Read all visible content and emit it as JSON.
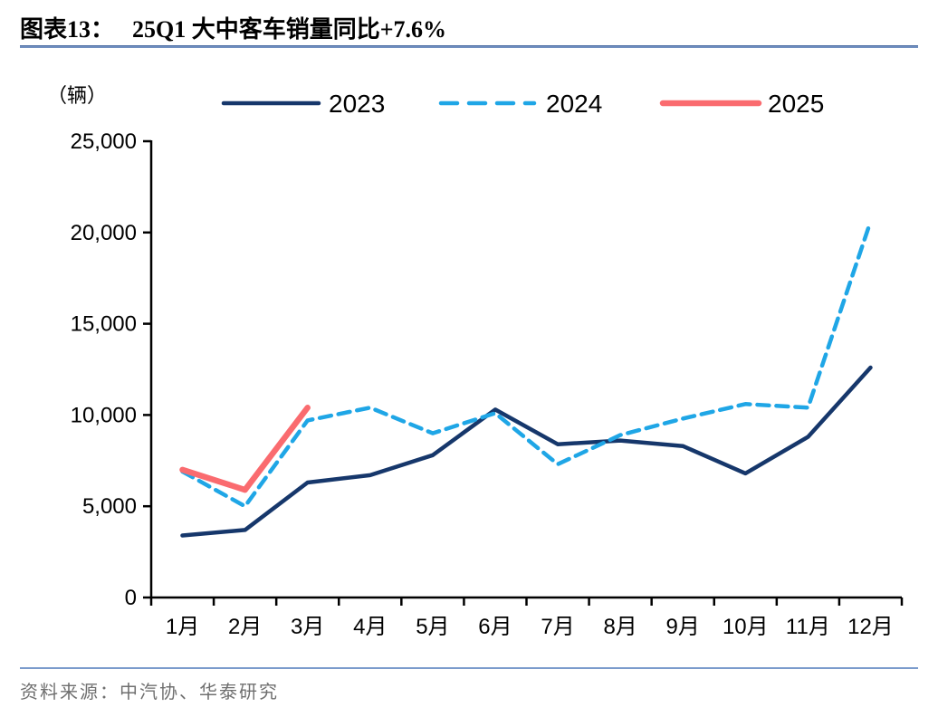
{
  "figure": {
    "label": "图表13：",
    "title": "25Q1 大中客车销量同比+7.6%"
  },
  "unit_label": "（辆）",
  "source": "资料来源：中汽协、华泰研究",
  "colors": {
    "navy_2023": "#16376B",
    "cyan_2024": "#1FA6E6",
    "red_2025": "#FA6B6F",
    "axis": "#000000",
    "title_rule": "#7190C0",
    "footer_rule": "#7B9BCC",
    "source_text": "#6F6F6F"
  },
  "chart_data": {
    "type": "line",
    "title": "25Q1 大中客车销量同比+7.6%",
    "xlabel": "",
    "ylabel": "（辆）",
    "categories": [
      "1月",
      "2月",
      "3月",
      "4月",
      "5月",
      "6月",
      "7月",
      "8月",
      "9月",
      "10月",
      "11月",
      "12月"
    ],
    "series": [
      {
        "name": "2023",
        "color": "#16376B",
        "style": "solid",
        "width": 4.5,
        "values": [
          3400,
          3700,
          6300,
          6700,
          7800,
          10300,
          8400,
          8600,
          8300,
          6800,
          8800,
          12600
        ]
      },
      {
        "name": "2024",
        "color": "#1FA6E6",
        "style": "dashed",
        "width": 4.5,
        "values": [
          6900,
          5000,
          9700,
          10400,
          9000,
          10100,
          7300,
          8900,
          9800,
          10600,
          10400,
          20600
        ]
      },
      {
        "name": "2025",
        "color": "#FA6B6F",
        "style": "solid",
        "width": 6.5,
        "values": [
          7000,
          5900,
          10400
        ]
      }
    ],
    "ylim": [
      0,
      25000
    ],
    "ytick_step": 5000,
    "ytick_labels": [
      "0",
      "5,000",
      "10,000",
      "15,000",
      "20,000",
      "25,000"
    ],
    "grid": false,
    "legend_position": "top"
  }
}
